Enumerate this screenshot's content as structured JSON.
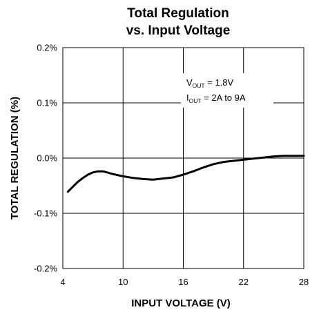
{
  "chart_data": {
    "type": "line",
    "title_lines": [
      "Total Regulation",
      "vs. Input Voltage"
    ],
    "xlabel": "INPUT VOLTAGE (V)",
    "ylabel": "TOTAL REGULATION (%)",
    "xlim": [
      4,
      28
    ],
    "ylim": [
      -0.2,
      0.2
    ],
    "x_ticks": [
      4,
      10,
      16,
      22,
      28
    ],
    "x_tick_labels": [
      "4",
      "10",
      "16",
      "22",
      "28"
    ],
    "y_ticks": [
      -0.2,
      -0.1,
      0.0,
      0.1,
      0.2
    ],
    "y_tick_labels": [
      "-0.2%",
      "-0.1%",
      "0.0%",
      "0.1%",
      "0.2%"
    ],
    "grid": true,
    "annotation": {
      "line1": {
        "main": "V",
        "sub": "OUT",
        "rest": " = 1.8V"
      },
      "line2": {
        "main": "I",
        "sub": "OUT",
        "rest": " = 2A to 9A"
      }
    },
    "series": [
      {
        "x": [
          4.5,
          5.0,
          5.5,
          6.0,
          6.5,
          7.0,
          7.5,
          8.0,
          9.0,
          10.0,
          11.0,
          12.0,
          13.0,
          14.0,
          15.0,
          16.0,
          17.0,
          18.0,
          19.0,
          20.0,
          21.0,
          22.0,
          23.0,
          24.0,
          25.0,
          26.0,
          27.0,
          28.0
        ],
        "y": [
          -0.061,
          -0.052,
          -0.043,
          -0.036,
          -0.03,
          -0.026,
          -0.024,
          -0.024,
          -0.029,
          -0.033,
          -0.036,
          -0.038,
          -0.039,
          -0.037,
          -0.035,
          -0.03,
          -0.024,
          -0.017,
          -0.011,
          -0.007,
          -0.005,
          -0.003,
          -0.001,
          0.001,
          0.003,
          0.004,
          0.004,
          0.004
        ]
      }
    ]
  }
}
